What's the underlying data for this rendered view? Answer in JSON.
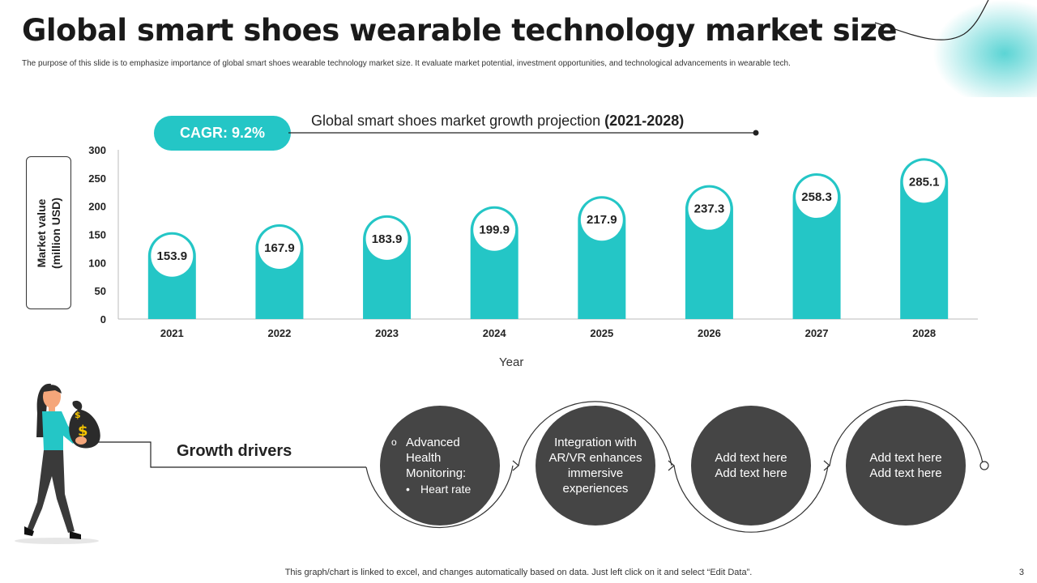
{
  "header": {
    "title": "Global smart shoes wearable technology market size",
    "subtitle": "The purpose of this slide is to emphasize importance of global smart shoes wearable technology market size. It evaluate market potential, investment opportunities, and technological advancements in wearable tech."
  },
  "cagr": "CAGR: 9.2%",
  "chart_data": {
    "type": "bar",
    "title_prefix": "Global smart shoes market growth projection ",
    "title_bold": "(2021-2028)",
    "categories": [
      "2021",
      "2022",
      "2023",
      "2024",
      "2025",
      "2026",
      "2027",
      "2028"
    ],
    "values": [
      153.9,
      167.9,
      183.9,
      199.9,
      217.9,
      237.3,
      258.3,
      285.1
    ],
    "ylabel_line1": "Market value",
    "ylabel_line2": "(million USD)",
    "xlabel": "Year",
    "ylim": [
      0,
      300
    ],
    "yticks": [
      0,
      50,
      100,
      150,
      200,
      250,
      300
    ],
    "bar_color": "#24c6c6",
    "grid": false
  },
  "drivers": {
    "label": "Growth drivers",
    "item1_title": "Advanced Health Monitoring:",
    "item1_bullet": "Heart rate",
    "item2": "Integration with AR/VR enhances immersive experiences",
    "item3_line1": "Add text here",
    "item3_line2": "Add text here",
    "item4_line1": "Add text here",
    "item4_line2": "Add text here"
  },
  "colors": {
    "accent": "#24c6c6",
    "dark_circle": "#454545"
  },
  "footer": {
    "note": "This graph/chart is linked to excel, and changes automatically based on data. Just left click on it and select “Edit Data”.",
    "page": "3"
  }
}
